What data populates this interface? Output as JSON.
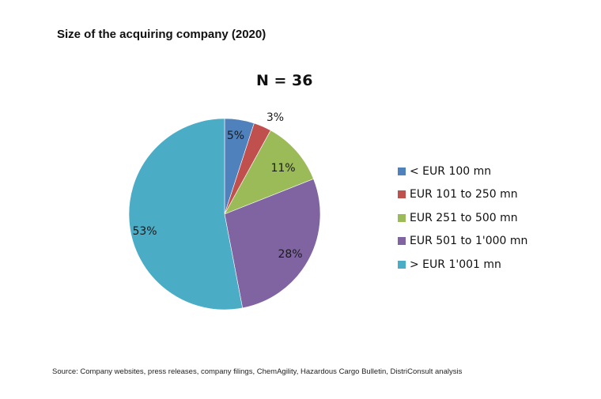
{
  "chart_data": {
    "type": "pie",
    "title": "Size of the acquiring company (2020)",
    "subtitle": "N = 36",
    "categories": [
      "< EUR 100 mn",
      "EUR 101 to 250 mn",
      "EUR 251 to 500 mn",
      "EUR 501 to 1'000 mn",
      "> EUR 1'001 mn"
    ],
    "values": [
      5,
      3,
      11,
      28,
      53
    ],
    "labels": [
      "5%",
      "3%",
      "11%",
      "28%",
      "53%"
    ],
    "colors": [
      "#4F81BD",
      "#C0504D",
      "#9BBB59",
      "#8064A2",
      "#4BACC6"
    ],
    "legend_position": "right",
    "start_angle": "12 o'clock, clockwise"
  },
  "header": {
    "title": "Size of the acquiring company (2020)",
    "subtitle": "N = 36"
  },
  "legend": {
    "items": [
      {
        "label": "< EUR 100 mn",
        "color": "#4F81BD"
      },
      {
        "label": "EUR 101 to 250 mn",
        "color": "#C0504D"
      },
      {
        "label": "EUR 251 to 500 mn",
        "color": "#9BBB59"
      },
      {
        "label": "EUR 501 to 1'000 mn",
        "color": "#8064A2"
      },
      {
        "label": "> EUR 1'001 mn",
        "color": "#4BACC6"
      }
    ]
  },
  "footer": {
    "source": "Source: Company websites, press releases, company filings, ChemAgility, Hazardous Cargo Bulletin, DistriConsult analysis"
  }
}
